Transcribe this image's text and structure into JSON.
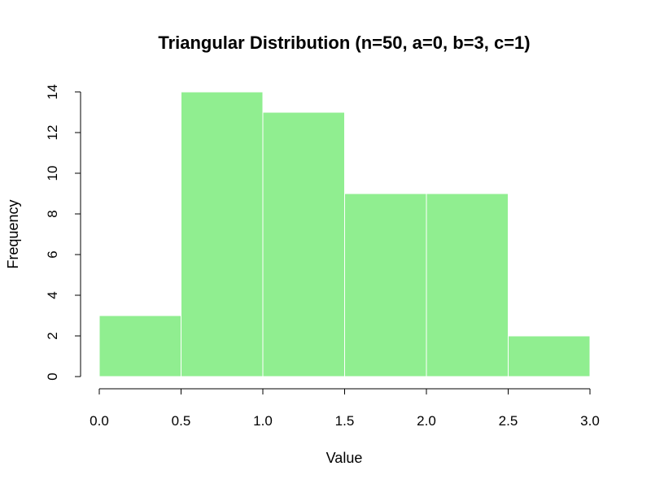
{
  "chart_data": {
    "type": "bar",
    "title": "Triangular Distribution (n=50, a=0, b=3, c=1)",
    "xlabel": "Value",
    "ylabel": "Frequency",
    "bins": [
      {
        "start": 0.0,
        "end": 0.5,
        "count": 3
      },
      {
        "start": 0.5,
        "end": 1.0,
        "count": 14
      },
      {
        "start": 1.0,
        "end": 1.5,
        "count": 13
      },
      {
        "start": 1.5,
        "end": 2.0,
        "count": 9
      },
      {
        "start": 2.0,
        "end": 2.5,
        "count": 9
      },
      {
        "start": 2.5,
        "end": 3.0,
        "count": 2
      }
    ],
    "xlim": [
      0,
      3
    ],
    "ylim": [
      0,
      14
    ],
    "x_ticks": [
      "0.0",
      "0.5",
      "1.0",
      "1.5",
      "2.0",
      "2.5",
      "3.0"
    ],
    "y_ticks": [
      "0",
      "2",
      "4",
      "6",
      "8",
      "10",
      "12",
      "14"
    ],
    "bar_color": "#90ee90",
    "bar_border_color": "#ffffff",
    "grid": false,
    "legend": "none"
  }
}
